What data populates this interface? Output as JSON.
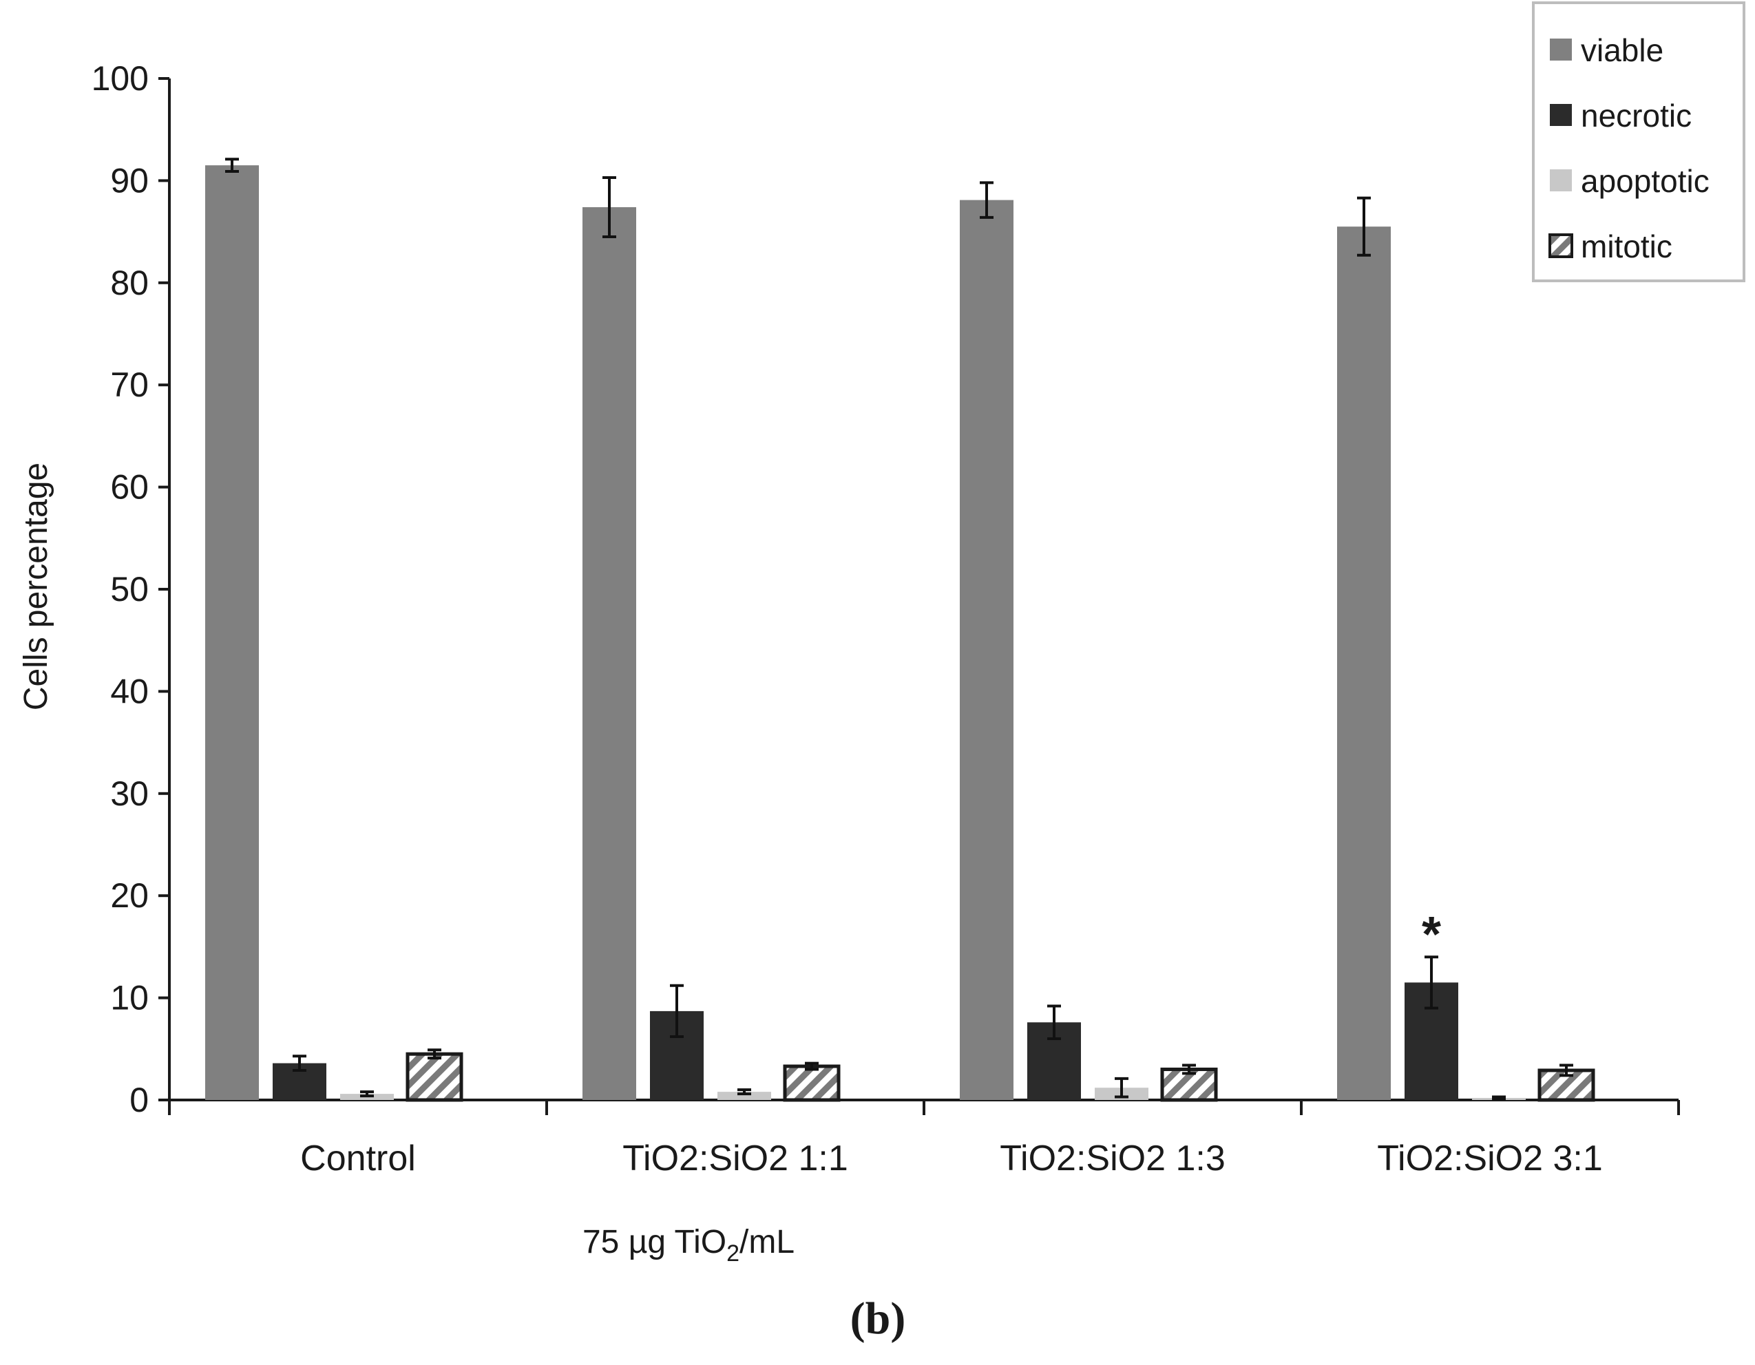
{
  "chart_data": {
    "type": "bar",
    "title": "",
    "xlabel": "75 µg TiO2/mL",
    "xlabel_parts": {
      "main": "75 µg TiO",
      "sub": "2",
      "tail": "/mL"
    },
    "ylabel": "Cells percentage",
    "ylim": [
      0,
      100
    ],
    "yticks": [
      0,
      10,
      20,
      30,
      40,
      50,
      60,
      70,
      80,
      90,
      100
    ],
    "grid": false,
    "legend_position": "top-right",
    "categories": [
      "Control",
      "TiO2:SiO2 1:1",
      "TiO2:SiO2 1:3",
      "TiO2:SiO2 3:1"
    ],
    "series": [
      {
        "name": "viable",
        "color": "#808080",
        "pattern": "solid",
        "values": [
          91.5,
          87.4,
          88.1,
          85.5
        ],
        "errors": [
          0.6,
          2.9,
          1.7,
          2.8
        ]
      },
      {
        "name": "necrotic",
        "color": "#2b2b2b",
        "pattern": "solid",
        "values": [
          3.6,
          8.7,
          7.6,
          11.5
        ],
        "errors": [
          0.7,
          2.5,
          1.6,
          2.5
        ]
      },
      {
        "name": "apoptotic",
        "color": "#c8c8c8",
        "pattern": "solid",
        "values": [
          0.6,
          0.8,
          1.2,
          0.2
        ],
        "errors": [
          0.2,
          0.2,
          0.9,
          0.1
        ]
      },
      {
        "name": "mitotic",
        "color": "#ffffff",
        "pattern": "hatch",
        "values": [
          4.5,
          3.3,
          3.0,
          2.9
        ],
        "errors": [
          0.4,
          0.3,
          0.4,
          0.5
        ]
      }
    ],
    "annotations": [
      {
        "text": "*",
        "category": "TiO2:SiO2 3:1",
        "series": "necrotic"
      }
    ]
  },
  "panel_label": "(b)"
}
